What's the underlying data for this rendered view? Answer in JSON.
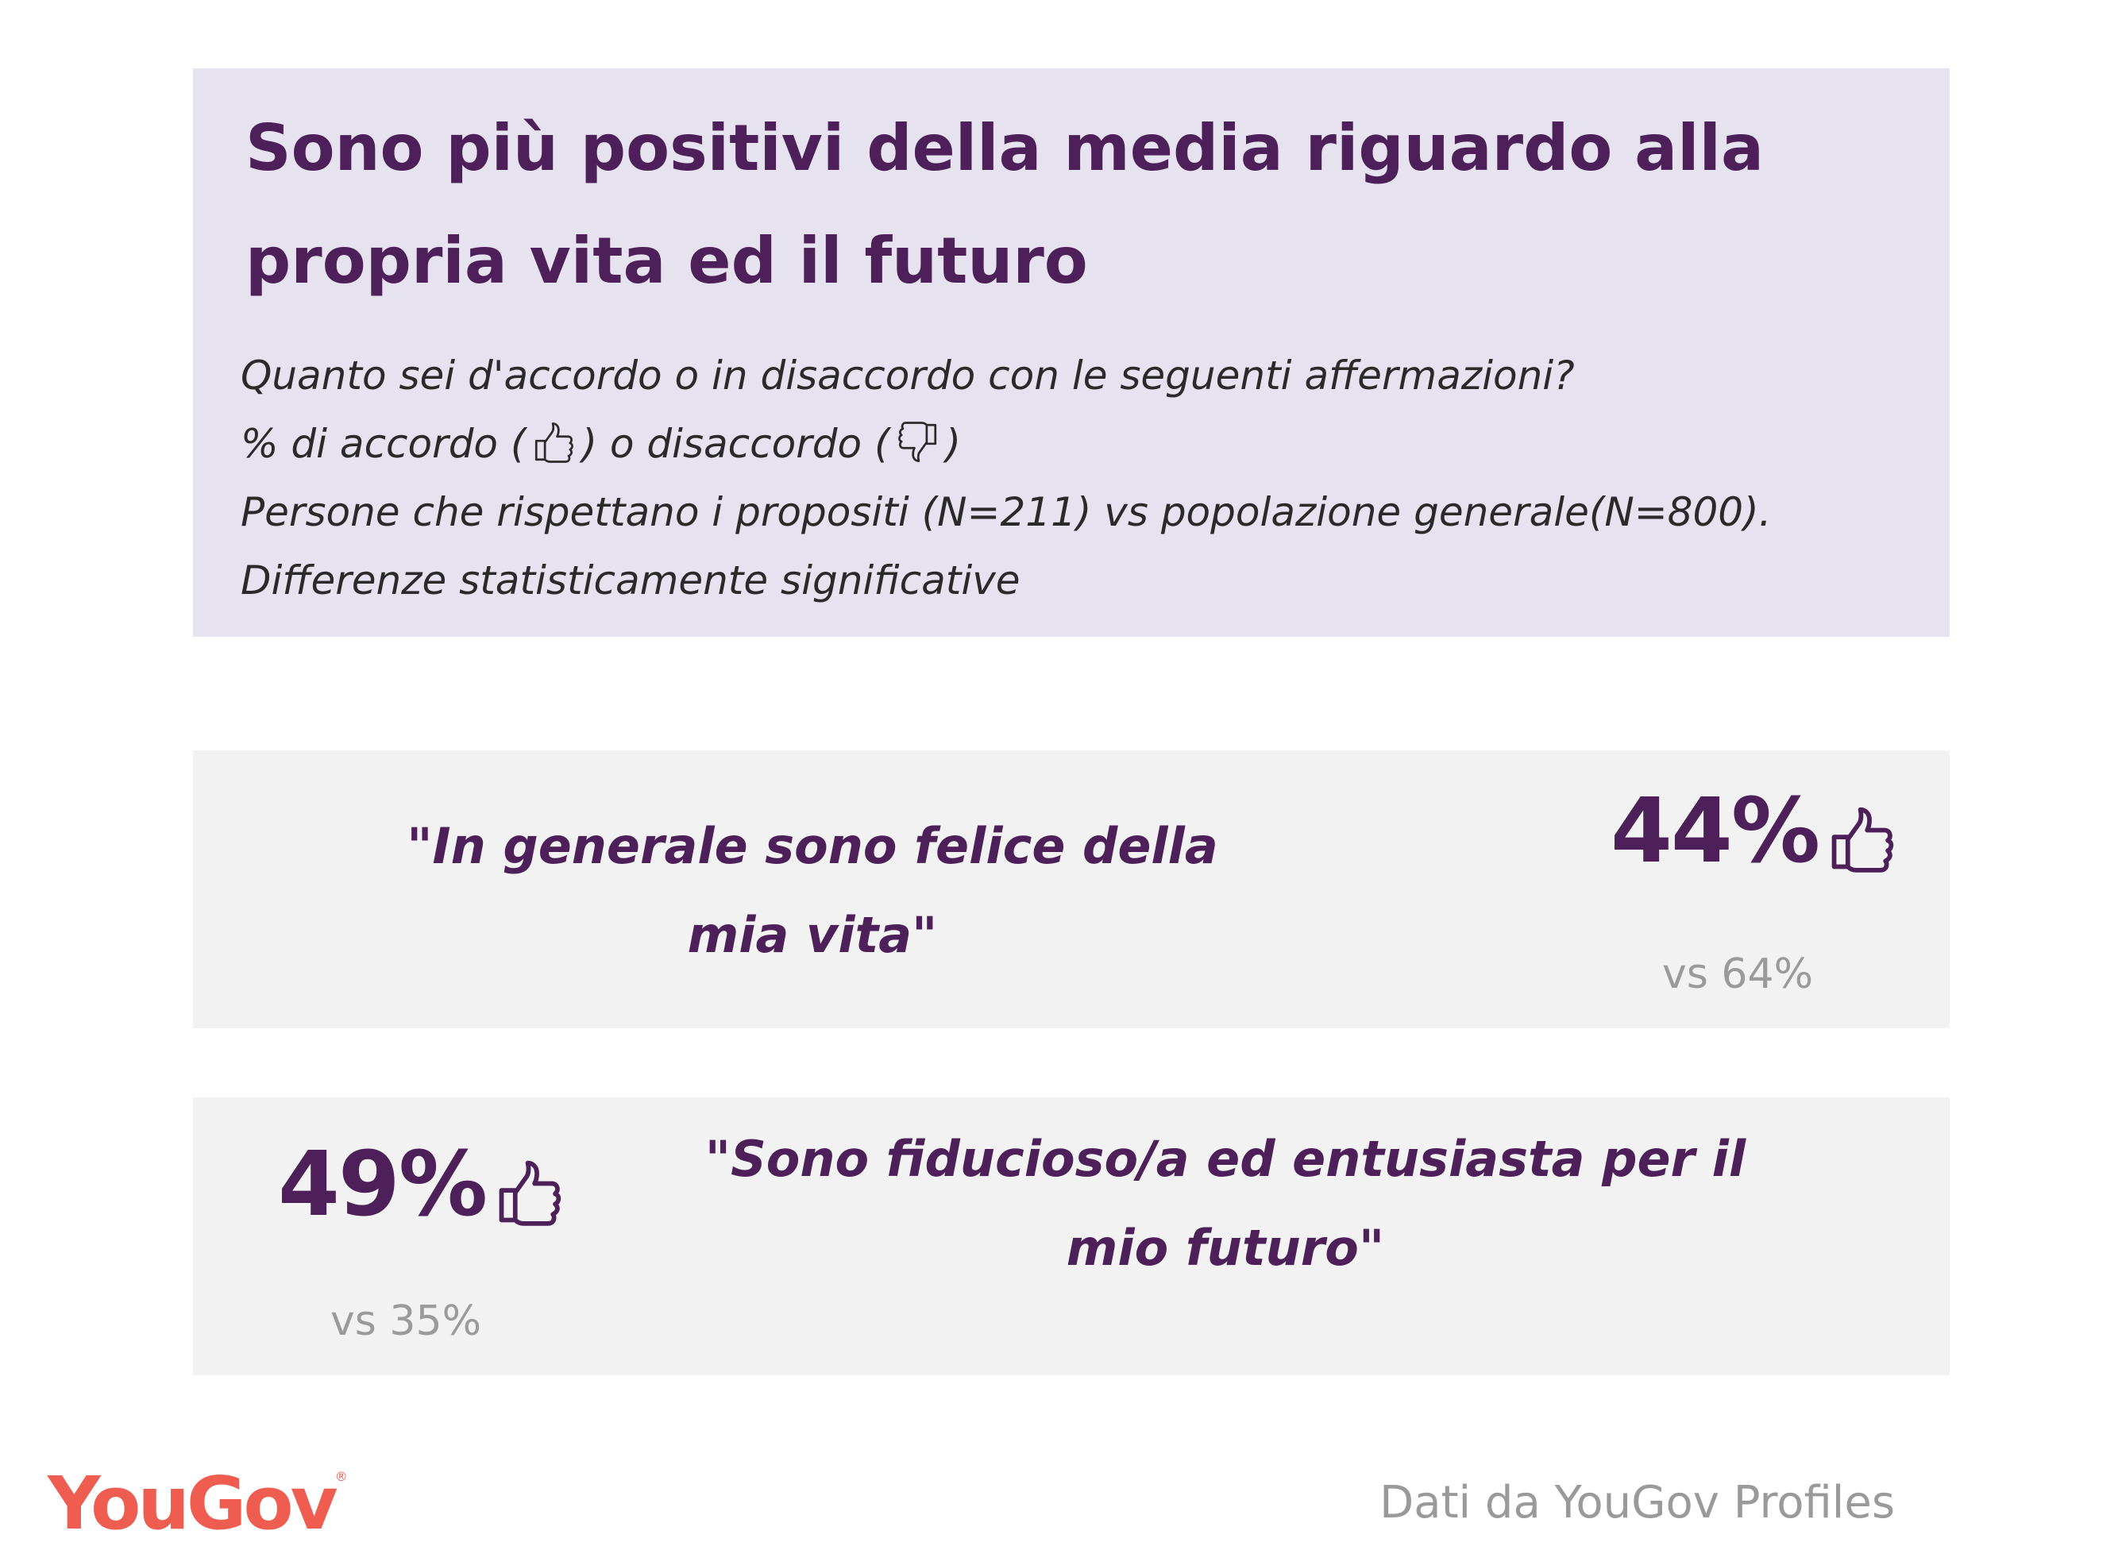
{
  "header": {
    "title": "Sono più positivi della media riguardo alla propria vita ed il futuro",
    "question": "Quanto sei d'accordo o in disaccordo con le seguenti affermazioni?",
    "legend_prefix": "% di accordo (",
    "legend_middle": ") o disaccordo (",
    "legend_suffix": ")",
    "sample": "Persone che rispettano i propositi (N=211) vs popolazione generale(N=800).",
    "note": "Differenze statisticamente significative"
  },
  "stats": [
    {
      "quote": "\"In generale sono felice della mia vita\"",
      "value": "44%",
      "comparison": "vs 64%",
      "icon": "thumbs-up-icon"
    },
    {
      "quote": "\"Sono fiducioso/a ed entusiasta per il mio futuro\"",
      "value": "49%",
      "comparison": "vs 35%",
      "icon": "thumbs-up-icon"
    }
  ],
  "footer": {
    "logo": "YouGov",
    "logo_mark": "®",
    "source": "Dati da YouGov Profiles"
  },
  "colors": {
    "header_bg": "#e7e2ef",
    "stat_bg": "#f2f2f2",
    "accent_purple": "#4e2059",
    "muted_gray": "#9a9a9a",
    "brand_red": "#ef5d50"
  }
}
